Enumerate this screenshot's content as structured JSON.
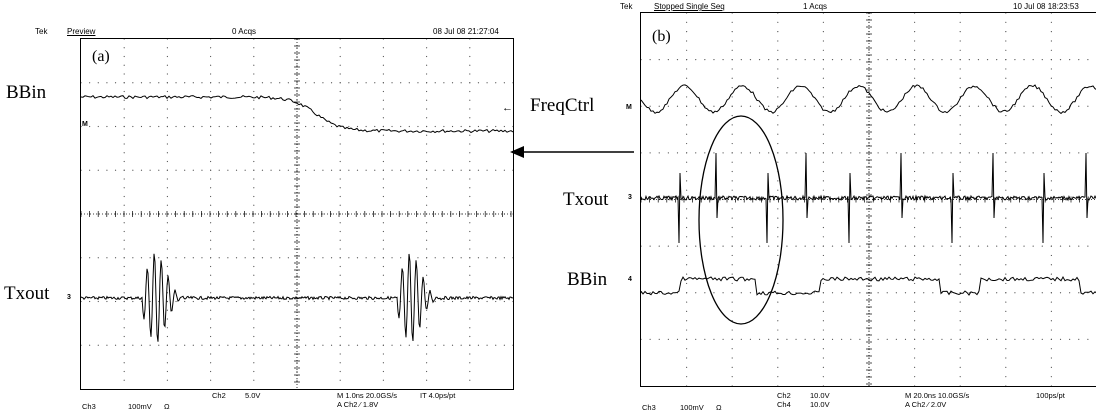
{
  "panel_a": {
    "header": {
      "brand": "Tek",
      "mode": "Preview",
      "acqs": "0 Acqs",
      "timestamp": "08 Jul 08 21:27:04"
    },
    "label": "(a)",
    "signals": {
      "top": "BBin",
      "bottom": "Txout"
    },
    "channel_marks": {
      "bottom": "3",
      "top": "M"
    },
    "footer": {
      "ch3": "Ch3",
      "ch3_scale": "100mV",
      "ch3_unit": "Ω",
      "ch2": "Ch2",
      "ch2_scale": "5.0V",
      "timebase": "M 1.0ns 20.0GS/s",
      "record": "IT 4.0ps/pt",
      "trigger": "A Ch2 ⁄ 1.8V"
    }
  },
  "panel_b": {
    "header": {
      "brand": "Tek",
      "mode": "Stopped Single Seq",
      "acqs": "1 Acqs",
      "timestamp": "10 Jul 08 18:23:53"
    },
    "label": "(b)",
    "signals": {
      "top": "FreqCtrl",
      "middle": "Txout",
      "bottom": "BBin"
    },
    "channel_marks": {
      "top": "M",
      "middle": "3",
      "bottom": "4"
    },
    "footer": {
      "ch3": "Ch3",
      "ch3_scale": "100mV",
      "ch3_unit": "Ω",
      "ch2": "Ch2",
      "ch2_scale": "10.0V",
      "ch4": "Ch4",
      "ch4_scale": "10.0V",
      "timebase": "M 20.0ns 10.0GS/s",
      "record": "100ps/pt",
      "trigger": "A Ch2 ⁄ 2.0V"
    }
  },
  "colors": {
    "trace": "#000000",
    "grid": "#000000",
    "background": "#ffffff"
  }
}
